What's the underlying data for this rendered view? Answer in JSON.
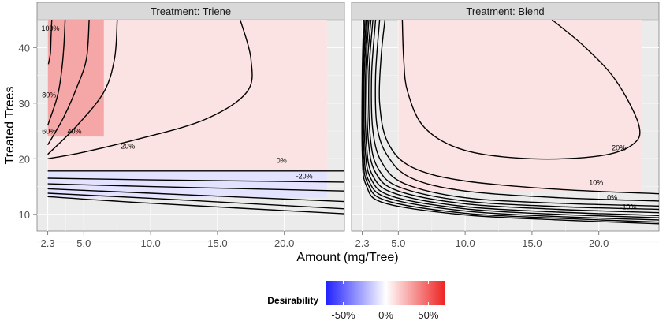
{
  "chart_data": {
    "type": "heatmap",
    "title": "",
    "xlabel": "Amount (mg/Tree)",
    "ylabel": "Treated Trees",
    "xlim": [
      1.5,
      24.5
    ],
    "ylim": [
      7,
      45
    ],
    "x_ticks": [
      {
        "value": 2.3,
        "label": "2.3"
      },
      {
        "value": 5,
        "label": "5.0"
      },
      {
        "value": 10,
        "label": "10.0"
      },
      {
        "value": 15,
        "label": "15.0"
      },
      {
        "value": 20,
        "label": "20.0"
      }
    ],
    "y_ticks": [
      {
        "value": 10,
        "label": "10"
      },
      {
        "value": 20,
        "label": "20"
      },
      {
        "value": 30,
        "label": "30"
      },
      {
        "value": 40,
        "label": "40"
      }
    ],
    "colors": {
      "low": "#2222ff",
      "mid": "#ffffff",
      "high": "#ee2222",
      "strip": "#d9d9d9",
      "panel": "#ebebeb",
      "grid": "#ffffff"
    },
    "panels": [
      {
        "strip_label": "Treatment: Triene",
        "contours": [
          {
            "level": 1.0,
            "label": "100%",
            "points": [
              [
                2.6,
                45
              ],
              [
                2.55,
                42
              ],
              [
                2.5,
                39
              ],
              [
                2.35,
                37
              ]
            ]
          },
          {
            "level": 0.8,
            "label": "80%",
            "points": [
              [
                3.6,
                45
              ],
              [
                3.5,
                40
              ],
              [
                3.3,
                35
              ],
              [
                3.0,
                31
              ],
              [
                2.3,
                26
              ]
            ]
          },
          {
            "level": 0.6,
            "label": "60%",
            "points": [
              [
                5.4,
                45
              ],
              [
                5.2,
                38
              ],
              [
                4.5,
                33
              ],
              [
                3.5,
                27.5
              ],
              [
                2.3,
                22.5
              ]
            ]
          },
          {
            "level": 0.4,
            "label": "40%",
            "points": [
              [
                7.5,
                45
              ],
              [
                7.3,
                38
              ],
              [
                6.5,
                32
              ],
              [
                4.5,
                26
              ],
              [
                2.3,
                20.8
              ]
            ]
          },
          {
            "level": 0.2,
            "label": "20%",
            "points": [
              [
                16.7,
                45
              ],
              [
                17.5,
                38
              ],
              [
                17.2,
                32
              ],
              [
                14,
                27
              ],
              [
                9,
                23.5
              ],
              [
                5,
                21.2
              ],
              [
                2.3,
                20
              ]
            ]
          },
          {
            "level": 0.0,
            "label": "0%",
            "points": [
              [
                2.3,
                17.8
              ],
              [
                10,
                17.8
              ],
              [
                24.5,
                17.8
              ]
            ]
          },
          {
            "level": -0.2,
            "label": "-20%",
            "points": [
              [
                2.3,
                16.5
              ],
              [
                10,
                16.2
              ],
              [
                24.5,
                15.8
              ]
            ]
          },
          {
            "level": -0.3,
            "label": "",
            "points": [
              [
                2.3,
                15.5
              ],
              [
                10,
                15.0
              ],
              [
                24.5,
                14.2
              ]
            ]
          },
          {
            "level": -0.4,
            "label": "",
            "points": [
              [
                2.3,
                14.6
              ],
              [
                10,
                13.8
              ],
              [
                24.5,
                12.3
              ]
            ]
          },
          {
            "level": -0.5,
            "label": "",
            "points": [
              [
                2.3,
                13.8
              ],
              [
                10,
                12.9
              ],
              [
                24.5,
                11.0
              ]
            ]
          },
          {
            "level": -0.6,
            "label": "",
            "points": [
              [
                2.3,
                13.2
              ],
              [
                10,
                12.0
              ],
              [
                24.5,
                10.1
              ]
            ]
          }
        ]
      },
      {
        "strip_label": "Treatment: Blend",
        "contours": [
          {
            "level": 0.2,
            "label": "20%",
            "points": [
              [
                16.5,
                45
              ],
              [
                19,
                40
              ],
              [
                21.3,
                34
              ],
              [
                23,
                26
              ],
              [
                22.5,
                22.5
              ],
              [
                20,
                20.5
              ],
              [
                15,
                20.0
              ],
              [
                10,
                21.5
              ],
              [
                7,
                25.5
              ],
              [
                5.7,
                32
              ],
              [
                5.4,
                38
              ],
              [
                5.3,
                45
              ]
            ]
          },
          {
            "level": 0.1,
            "label": "10%",
            "points": [
              [
                4.0,
                45
              ],
              [
                3.7,
                38
              ],
              [
                3.6,
                30
              ],
              [
                4.2,
                23
              ],
              [
                6,
                18.5
              ],
              [
                10,
                16.0
              ],
              [
                17,
                14.5
              ],
              [
                24.5,
                13.7
              ]
            ]
          },
          {
            "level": 0.05,
            "label": "",
            "points": [
              [
                3.6,
                45
              ],
              [
                3.3,
                35
              ],
              [
                3.4,
                26
              ],
              [
                4.2,
                20.5
              ],
              [
                6,
                16.5
              ],
              [
                10,
                14.2
              ],
              [
                17,
                13.0
              ],
              [
                24.5,
                12.4
              ]
            ]
          },
          {
            "level": 0.0,
            "label": "0%",
            "points": [
              [
                3.3,
                45
              ],
              [
                3.0,
                35
              ],
              [
                3.1,
                25
              ],
              [
                3.8,
                19.2
              ],
              [
                5.5,
                15.5
              ],
              [
                10,
                13.0
              ],
              [
                17,
                12.0
              ],
              [
                24.5,
                11.5
              ]
            ]
          },
          {
            "level": -0.05,
            "label": "",
            "points": [
              [
                3.1,
                45
              ],
              [
                2.8,
                35
              ],
              [
                2.9,
                24
              ],
              [
                3.5,
                18.2
              ],
              [
                5.2,
                14.8
              ],
              [
                10,
                12.4
              ],
              [
                17,
                11.4
              ],
              [
                24.5,
                10.9
              ]
            ]
          },
          {
            "level": -0.1,
            "label": "-10%",
            "points": [
              [
                2.95,
                45
              ],
              [
                2.65,
                35
              ],
              [
                2.75,
                23.5
              ],
              [
                3.3,
                17.5
              ],
              [
                5.0,
                14.2
              ],
              [
                10,
                11.9
              ],
              [
                17,
                10.9
              ],
              [
                24.5,
                10.3
              ]
            ]
          },
          {
            "level": -0.15,
            "label": "",
            "points": [
              [
                2.8,
                45
              ],
              [
                2.55,
                35
              ],
              [
                2.6,
                23
              ],
              [
                3.1,
                16.9
              ],
              [
                4.8,
                13.7
              ],
              [
                10,
                11.4
              ],
              [
                17,
                10.4
              ],
              [
                24.5,
                9.8
              ]
            ]
          },
          {
            "level": -0.2,
            "label": "",
            "points": [
              [
                2.7,
                45
              ],
              [
                2.45,
                35
              ],
              [
                2.5,
                22.5
              ],
              [
                2.95,
                16.4
              ],
              [
                4.6,
                13.2
              ],
              [
                10,
                11.0
              ],
              [
                17,
                10.0
              ],
              [
                24.5,
                9.4
              ]
            ]
          },
          {
            "level": -0.25,
            "label": "",
            "points": [
              [
                2.6,
                45
              ],
              [
                2.38,
                35
              ],
              [
                2.42,
                22
              ],
              [
                2.8,
                16.0
              ],
              [
                4.4,
                12.8
              ],
              [
                10,
                10.6
              ],
              [
                17,
                9.6
              ],
              [
                24.5,
                9.0
              ]
            ]
          },
          {
            "level": -0.3,
            "label": "",
            "points": [
              [
                2.5,
                45
              ],
              [
                2.33,
                35
              ],
              [
                2.35,
                21.5
              ],
              [
                2.7,
                15.6
              ],
              [
                4.2,
                12.4
              ],
              [
                10,
                10.2
              ],
              [
                17,
                9.3
              ],
              [
                24.5,
                8.6
              ]
            ]
          },
          {
            "level": -0.35,
            "label": "",
            "points": [
              [
                2.4,
                45
              ],
              [
                2.3,
                35
              ],
              [
                2.3,
                21.0
              ],
              [
                2.6,
                15.2
              ],
              [
                4.0,
                12.0
              ],
              [
                10,
                9.9
              ],
              [
                17,
                9.0
              ],
              [
                24.5,
                8.3
              ]
            ]
          }
        ]
      }
    ],
    "legend": {
      "title": "Desirability",
      "range": [
        -0.7,
        0.7
      ],
      "ticks": [
        {
          "value": -0.5,
          "label": "-50%"
        },
        {
          "value": 0,
          "label": "0%"
        },
        {
          "value": 0.5,
          "label": "50%"
        }
      ]
    }
  }
}
